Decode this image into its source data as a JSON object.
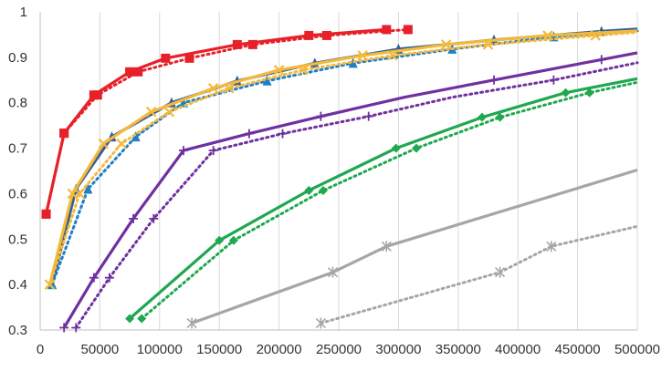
{
  "chart_data": {
    "type": "line",
    "title": "",
    "xlabel": "",
    "ylabel": "",
    "xlim": [
      0,
      500000
    ],
    "ylim": [
      0.3,
      1.0
    ],
    "x_ticks": [
      0,
      50000,
      100000,
      150000,
      200000,
      250000,
      300000,
      350000,
      400000,
      450000,
      500000
    ],
    "x_tick_labels": [
      "0",
      "50000",
      "100000",
      "150000",
      "200000",
      "250000",
      "300000",
      "350000",
      "400000",
      "450000",
      "500000"
    ],
    "y_ticks": [
      0.3,
      0.4,
      0.5,
      0.6,
      0.7,
      0.8,
      0.9,
      1.0
    ],
    "y_tick_labels": [
      "0.3",
      "0.4",
      "0.5",
      "0.6",
      "0.7",
      "0.8",
      "0.9",
      "1"
    ],
    "grid": "vertical",
    "legend": "none",
    "series": [
      {
        "color": "#e8202a",
        "dash": "solid",
        "marker": "square",
        "points": [
          [
            5000,
            0.555
          ],
          [
            20000,
            0.733
          ],
          [
            45000,
            0.817
          ],
          [
            75000,
            0.868
          ],
          [
            105000,
            0.898
          ],
          [
            165000,
            0.928
          ],
          [
            225000,
            0.948
          ],
          [
            290000,
            0.961
          ]
        ],
        "markers": [
          [
            5000,
            0.555
          ],
          [
            20000,
            0.733
          ],
          [
            45000,
            0.817
          ],
          [
            75000,
            0.868
          ],
          [
            105000,
            0.898
          ],
          [
            165000,
            0.928
          ],
          [
            225000,
            0.948
          ],
          [
            290000,
            0.961
          ]
        ]
      },
      {
        "color": "#e8202a",
        "dash": "dotted",
        "marker": "square",
        "points": [
          [
            5000,
            0.555
          ],
          [
            20000,
            0.733
          ],
          [
            48000,
            0.817
          ],
          [
            82000,
            0.868
          ],
          [
            125000,
            0.898
          ],
          [
            178000,
            0.928
          ],
          [
            240000,
            0.948
          ],
          [
            308000,
            0.961
          ]
        ],
        "markers": [
          [
            5000,
            0.555
          ],
          [
            20000,
            0.733
          ],
          [
            48000,
            0.817
          ],
          [
            82000,
            0.868
          ],
          [
            125000,
            0.898
          ],
          [
            178000,
            0.928
          ],
          [
            240000,
            0.948
          ],
          [
            308000,
            0.961
          ]
        ]
      },
      {
        "color": "#2f5f9a",
        "dash": "solid",
        "marker": "triangle",
        "points": [
          [
            10000,
            0.4
          ],
          [
            30000,
            0.61
          ],
          [
            60000,
            0.725
          ],
          [
            110000,
            0.8
          ],
          [
            165000,
            0.848
          ],
          [
            230000,
            0.887
          ],
          [
            300000,
            0.918
          ],
          [
            380000,
            0.938
          ],
          [
            470000,
            0.957
          ],
          [
            500000,
            0.962
          ]
        ],
        "markers": [
          [
            10000,
            0.4
          ],
          [
            30000,
            0.61
          ],
          [
            60000,
            0.725
          ],
          [
            110000,
            0.8
          ],
          [
            165000,
            0.848
          ],
          [
            230000,
            0.887
          ],
          [
            300000,
            0.918
          ],
          [
            380000,
            0.938
          ],
          [
            470000,
            0.957
          ]
        ]
      },
      {
        "color": "#1f7fc8",
        "dash": "dotted",
        "marker": "triangle",
        "points": [
          [
            10000,
            0.4
          ],
          [
            40000,
            0.61
          ],
          [
            80000,
            0.725
          ],
          [
            120000,
            0.8
          ],
          [
            190000,
            0.848
          ],
          [
            262000,
            0.887
          ],
          [
            345000,
            0.918
          ],
          [
            430000,
            0.945
          ],
          [
            500000,
            0.958
          ]
        ],
        "markers": [
          [
            10000,
            0.4
          ],
          [
            40000,
            0.61
          ],
          [
            80000,
            0.725
          ],
          [
            120000,
            0.8
          ],
          [
            190000,
            0.848
          ],
          [
            262000,
            0.887
          ],
          [
            345000,
            0.918
          ],
          [
            430000,
            0.945
          ]
        ]
      },
      {
        "color": "#f5b93a",
        "dash": "solid",
        "marker": "x",
        "points": [
          [
            8000,
            0.4
          ],
          [
            27000,
            0.6
          ],
          [
            53000,
            0.71
          ],
          [
            93000,
            0.78
          ],
          [
            145000,
            0.832
          ],
          [
            200000,
            0.872
          ],
          [
            270000,
            0.904
          ],
          [
            340000,
            0.928
          ],
          [
            425000,
            0.948
          ],
          [
            500000,
            0.958
          ]
        ],
        "markers": [
          [
            8000,
            0.4
          ],
          [
            27000,
            0.6
          ],
          [
            53000,
            0.71
          ],
          [
            93000,
            0.78
          ],
          [
            145000,
            0.832
          ],
          [
            200000,
            0.872
          ],
          [
            270000,
            0.904
          ],
          [
            340000,
            0.928
          ],
          [
            425000,
            0.948
          ]
        ]
      },
      {
        "color": "#f5b93a",
        "dash": "dotted",
        "marker": "x",
        "points": [
          [
            8000,
            0.4
          ],
          [
            33000,
            0.6
          ],
          [
            68000,
            0.71
          ],
          [
            108000,
            0.78
          ],
          [
            158000,
            0.832
          ],
          [
            220000,
            0.872
          ],
          [
            295000,
            0.904
          ],
          [
            375000,
            0.928
          ],
          [
            465000,
            0.948
          ],
          [
            500000,
            0.955
          ]
        ],
        "markers": [
          [
            8000,
            0.4
          ],
          [
            33000,
            0.6
          ],
          [
            68000,
            0.71
          ],
          [
            108000,
            0.78
          ],
          [
            158000,
            0.832
          ],
          [
            220000,
            0.872
          ],
          [
            295000,
            0.904
          ],
          [
            375000,
            0.928
          ],
          [
            465000,
            0.948
          ]
        ]
      },
      {
        "color": "#7030a0",
        "dash": "solid",
        "marker": "plus",
        "points": [
          [
            20000,
            0.305
          ],
          [
            45000,
            0.415
          ],
          [
            78000,
            0.545
          ],
          [
            120000,
            0.695
          ],
          [
            175000,
            0.732
          ],
          [
            235000,
            0.77
          ],
          [
            305000,
            0.812
          ],
          [
            380000,
            0.85
          ],
          [
            470000,
            0.895
          ],
          [
            500000,
            0.91
          ]
        ],
        "markers": [
          [
            20000,
            0.305
          ],
          [
            45000,
            0.415
          ],
          [
            78000,
            0.545
          ],
          [
            120000,
            0.695
          ],
          [
            175000,
            0.732
          ],
          [
            235000,
            0.77
          ],
          [
            380000,
            0.85
          ],
          [
            470000,
            0.895
          ]
        ]
      },
      {
        "color": "#7030a0",
        "dash": "dotted",
        "marker": "plus",
        "points": [
          [
            30000,
            0.305
          ],
          [
            58000,
            0.415
          ],
          [
            95000,
            0.545
          ],
          [
            145000,
            0.695
          ],
          [
            203000,
            0.732
          ],
          [
            275000,
            0.77
          ],
          [
            345000,
            0.812
          ],
          [
            430000,
            0.85
          ],
          [
            500000,
            0.888
          ]
        ],
        "markers": [
          [
            30000,
            0.305
          ],
          [
            58000,
            0.415
          ],
          [
            95000,
            0.545
          ],
          [
            145000,
            0.695
          ],
          [
            203000,
            0.732
          ],
          [
            275000,
            0.77
          ],
          [
            430000,
            0.85
          ]
        ]
      },
      {
        "color": "#1fa84f",
        "dash": "solid",
        "marker": "diamond",
        "points": [
          [
            75000,
            0.325
          ],
          [
            150000,
            0.497
          ],
          [
            225000,
            0.607
          ],
          [
            298000,
            0.7
          ],
          [
            370000,
            0.768
          ],
          [
            440000,
            0.822
          ],
          [
            500000,
            0.853
          ]
        ],
        "markers": [
          [
            75000,
            0.325
          ],
          [
            150000,
            0.497
          ],
          [
            225000,
            0.607
          ],
          [
            298000,
            0.7
          ],
          [
            370000,
            0.768
          ],
          [
            440000,
            0.822
          ]
        ]
      },
      {
        "color": "#1fa84f",
        "dash": "dotted",
        "marker": "diamond",
        "points": [
          [
            85000,
            0.325
          ],
          [
            162000,
            0.497
          ],
          [
            237000,
            0.607
          ],
          [
            315000,
            0.7
          ],
          [
            385000,
            0.768
          ],
          [
            460000,
            0.822
          ],
          [
            500000,
            0.845
          ]
        ],
        "markers": [
          [
            85000,
            0.325
          ],
          [
            162000,
            0.497
          ],
          [
            237000,
            0.607
          ],
          [
            315000,
            0.7
          ],
          [
            385000,
            0.768
          ],
          [
            460000,
            0.822
          ]
        ]
      },
      {
        "color": "#a6a6a6",
        "dash": "solid",
        "marker": "star",
        "points": [
          [
            127000,
            0.315
          ],
          [
            245000,
            0.427
          ],
          [
            290000,
            0.484
          ],
          [
            500000,
            0.652
          ]
        ],
        "markers": [
          [
            127000,
            0.315
          ],
          [
            245000,
            0.427
          ],
          [
            290000,
            0.484
          ]
        ]
      },
      {
        "color": "#a6a6a6",
        "dash": "dotted",
        "marker": "star",
        "points": [
          [
            235000,
            0.315
          ],
          [
            385000,
            0.427
          ],
          [
            428000,
            0.484
          ],
          [
            500000,
            0.528
          ]
        ],
        "markers": [
          [
            235000,
            0.315
          ],
          [
            385000,
            0.427
          ],
          [
            428000,
            0.484
          ]
        ]
      }
    ]
  }
}
